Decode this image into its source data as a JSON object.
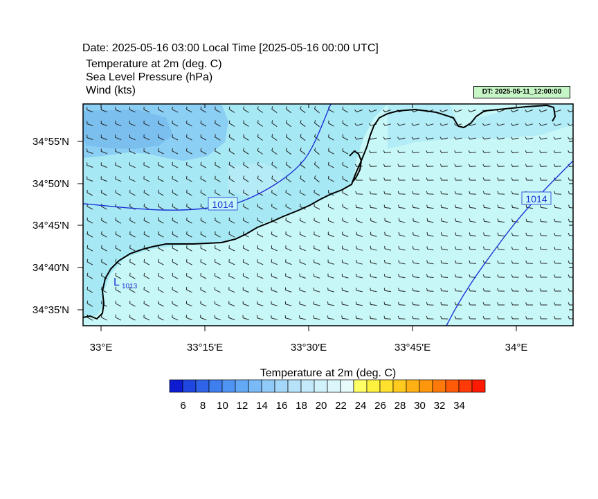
{
  "header": {
    "date_line": "Date: 2025-05-16  03:00 Local Time [2025-05-16  00:00 UTC]",
    "variables": [
      "Temperature at 2m   (deg. C)",
      "Sea Level Pressure   (hPa)",
      "Wind   (kts)"
    ],
    "dt_badge": "DT: 2025-05-11_12:00:00"
  },
  "map": {
    "lon_ticks": [
      "33°E",
      "33°15'E",
      "33°30'E",
      "33°45'E",
      "34°E"
    ],
    "lat_ticks": [
      "34°55'N",
      "34°50'N",
      "34°45'N",
      "34°40'N",
      "34°35'N"
    ],
    "isobar_labels": [
      "1014",
      "1014"
    ],
    "low_label": "L",
    "low_value": "1013",
    "colors": {
      "sea_fill": "#c8f7f7",
      "land_fill": "#9ce6f2",
      "cold_patch": "#7ec6f2",
      "isobar": "#1b2fd6",
      "coast": "#000000"
    }
  },
  "colorbar": {
    "title": "Temperature at 2m  (deg. C)",
    "labels": [
      "6",
      "8",
      "10",
      "12",
      "14",
      "16",
      "18",
      "20",
      "22",
      "24",
      "26",
      "28",
      "30",
      "32",
      "34"
    ],
    "colors": [
      "#0d1bd1",
      "#1f46e0",
      "#2f64e8",
      "#3f7eee",
      "#4f94f2",
      "#62a8f5",
      "#79baf7",
      "#8fcaf8",
      "#a4d7f9",
      "#b6e2fa",
      "#c4ebfb",
      "#d0f2fb",
      "#dcf7fb",
      "#e8fbfc",
      "#ffff66",
      "#fff23f",
      "#ffe12e",
      "#ffcb1f",
      "#ffb114",
      "#ff970d",
      "#ff7a0a",
      "#ff5a08",
      "#ff3a06",
      "#ff1a04"
    ]
  }
}
